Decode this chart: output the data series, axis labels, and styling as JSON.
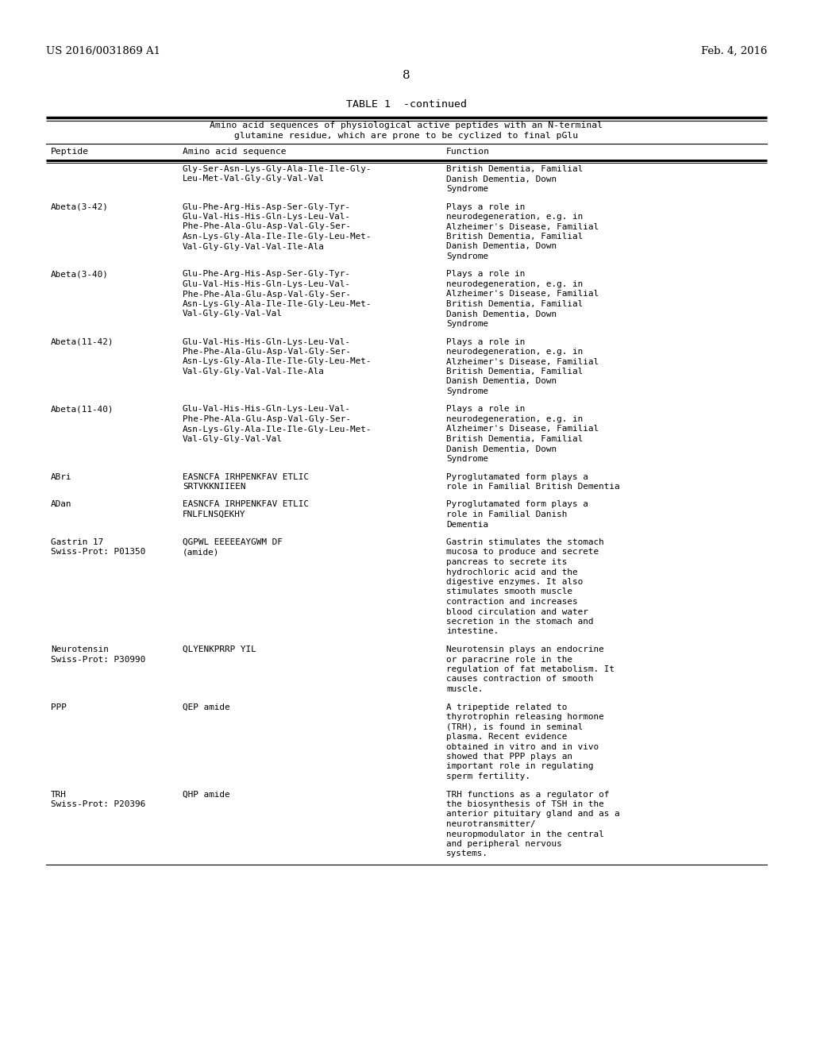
{
  "patent_number": "US 2016/0031869 A1",
  "date": "Feb. 4, 2016",
  "page_number": "8",
  "table_title": "TABLE 1  -continued",
  "table_subtitle1": "Amino acid sequences of physiological active peptides with an N-terminal",
  "table_subtitle2": "glutamine residue, which are prone to be cyclized to final pGlu",
  "col_headers": [
    "Peptide",
    "Amino acid sequence",
    "Function"
  ],
  "rows": [
    {
      "peptide": "",
      "sequence": "Gly-Ser-Asn-Lys-Gly-Ala-Ile-Ile-Gly- British Dementia, Familial\nLeu-Met-Val-Gly-Gly-Val-Val",
      "sequence_col2": "Gly-Ser-Asn-Lys-Gly-Ala-Ile-Ile-Gly-\nLeu-Met-Val-Gly-Gly-Val-Val",
      "function": "British Dementia, Familial\nDanish Dementia, Down\nSyndrome"
    },
    {
      "peptide": "Abeta(3-42)",
      "sequence_col2": "Glu-Phe-Arg-His-Asp-Ser-Gly-Tyr-\nGlu-Val-His-His-Gln-Lys-Leu-Val-\nPhe-Phe-Ala-Glu-Asp-Val-Gly-Ser-\nAsn-Lys-Gly-Ala-Ile-Ile-Gly-Leu-Met-\nVal-Gly-Gly-Val-Val-Ile-Ala",
      "function": "Plays a role in\nneurodegeneration, e.g. in\nAlzheimer's Disease, Familial\nBritish Dementia, Familial\nDanish Dementia, Down\nSyndrome"
    },
    {
      "peptide": "Abeta(3-40)",
      "sequence_col2": "Glu-Phe-Arg-His-Asp-Ser-Gly-Tyr-\nGlu-Val-His-His-Gln-Lys-Leu-Val-\nPhe-Phe-Ala-Glu-Asp-Val-Gly-Ser-\nAsn-Lys-Gly-Ala-Ile-Ile-Gly-Leu-Met-\nVal-Gly-Gly-Val-Val",
      "function": "Plays a role in\nneurodegeneration, e.g. in\nAlzheimer's Disease, Familial\nBritish Dementia, Familial\nDanish Dementia, Down\nSyndrome"
    },
    {
      "peptide": "Abeta(11-42)",
      "sequence_col2": "Glu-Val-His-His-Gln-Lys-Leu-Val-\nPhe-Phe-Ala-Glu-Asp-Val-Gly-Ser-\nAsn-Lys-Gly-Ala-Ile-Ile-Gly-Leu-Met-\nVal-Gly-Gly-Val-Val-Ile-Ala",
      "function": "Plays a role in\nneurodegeneration, e.g. in\nAlzheimer's Disease, Familial\nBritish Dementia, Familial\nDanish Dementia, Down\nSyndrome"
    },
    {
      "peptide": "Abeta(11-40)",
      "sequence_col2": "Glu-Val-His-His-Gln-Lys-Leu-Val-\nPhe-Phe-Ala-Glu-Asp-Val-Gly-Ser-\nAsn-Lys-Gly-Ala-Ile-Ile-Gly-Leu-Met-\nVal-Gly-Gly-Val-Val",
      "function": "Plays a role in\nneurodegeneration, e.g. in\nAlzheimer's Disease, Familial\nBritish Dementia, Familial\nDanish Dementia, Down\nSyndrome"
    },
    {
      "peptide": "ABri",
      "sequence_col2": "EASNCFA IRHPENKFAV ETLIC\nSRTVKKNIIEEN",
      "function": "Pyroglutamated form plays a\nrole in Familial British Dementia"
    },
    {
      "peptide": "ADan",
      "sequence_col2": "EASNCFA IRHPENKFAV ETLIC\nFNLFLNSQEKHY",
      "function": "Pyroglutamated form plays a\nrole in Familial Danish\nDementia"
    },
    {
      "peptide": "Gastrin 17\nSwiss-Prot: P01350",
      "sequence_col2": "QGPWL EEEEEAYGWM DF\n(amide)",
      "function": "Gastrin stimulates the stomach\nmucosa to produce and secrete\npancreas to secrete its\nhydrochloric acid and the\ndigestive enzymes. It also\nstimulates smooth muscle\ncontraction and increases\nblood circulation and water\nsecretion in the stomach and\nintestine."
    },
    {
      "peptide": "Neurotensin\nSwiss-Prot: P30990",
      "sequence_col2": "QLYENKPRRP YIL",
      "function": "Neurotensin plays an endocrine\nor paracrine role in the\nregulation of fat metabolism. It\ncauses contraction of smooth\nmuscle."
    },
    {
      "peptide": "PPP",
      "sequence_col2": "QEP amide",
      "function": "A tripeptide related to\nthyrotrophin releasing hormone\n(TRH), is found in seminal\nplasma. Recent evidence\nobtained in vitro and in vivo\nshowed that PPP plays an\nimportant role in regulating\nsperm fertility."
    },
    {
      "peptide": "TRH\nSwiss-Prot: P20396",
      "sequence_col2": "QHP amide",
      "function": "TRH functions as a regulator of\nthe biosynthesis of TSH in the\nanterior pituitary gland and as a\nneurotransmitter/\nneuropmodulator in the central\nand peripheral nervous\nsystems."
    }
  ],
  "bg_color": "#ffffff",
  "text_color": "#000000"
}
